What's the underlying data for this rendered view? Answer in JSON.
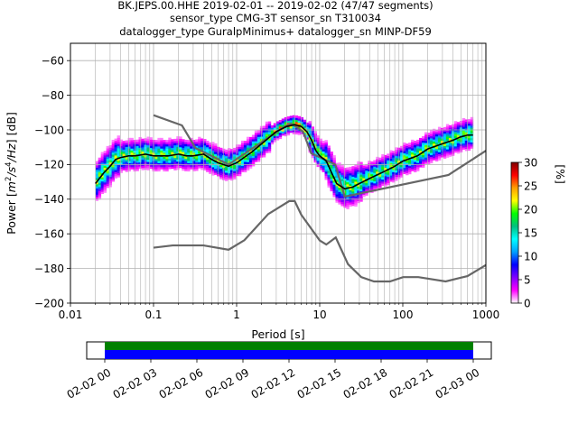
{
  "title": {
    "line1": "BK.JEPS.00.HHE   2019-02-01 -- 2019-02-02  (47/47 segments)",
    "line2": "sensor_type CMG-3T sensor_sn T310034",
    "line3": "datalogger_type GuralpMinimus+ datalogger_sn MINP-DF59"
  },
  "chart_data": {
    "type": "heatmap",
    "xlabel": "Period [s]",
    "ylabel_parts": [
      "Power [",
      "m",
      "2",
      "/s",
      "4",
      "/Hz",
      "] [dB]"
    ],
    "xscale": "log",
    "xlim": [
      0.01,
      1000
    ],
    "ylim": [
      -200,
      -50
    ],
    "xticks": [
      0.01,
      0.1,
      1,
      10,
      100,
      1000
    ],
    "xtick_labels": [
      "0.01",
      "0.1",
      "1",
      "10",
      "100",
      "1000"
    ],
    "yticks": [
      -60,
      -80,
      -100,
      -120,
      -140,
      -160,
      -180,
      -200
    ],
    "ytick_labels": [
      "−60",
      "−80",
      "−100",
      "−120",
      "−140",
      "−160",
      "−180",
      "−200"
    ],
    "grid": true,
    "colorbar": {
      "label": "[%]",
      "range": [
        0,
        30
      ],
      "ticks": [
        0,
        5,
        10,
        15,
        20,
        25,
        30
      ],
      "tick_labels": [
        "0",
        "5",
        "10",
        "15",
        "20",
        "25",
        "30"
      ],
      "colors": [
        "#ffffff",
        "#ff00ff",
        "#8000ff",
        "#0000ff",
        "#00a0ff",
        "#00ffff",
        "#00c080",
        "#00ff00",
        "#ffff00",
        "#ffa000",
        "#ff0000",
        "#800000"
      ]
    },
    "mode_curve": [
      [
        0.02,
        -131
      ],
      [
        0.025,
        -125
      ],
      [
        0.03,
        -121
      ],
      [
        0.035,
        -117
      ],
      [
        0.04,
        -116
      ],
      [
        0.05,
        -115
      ],
      [
        0.06,
        -115
      ],
      [
        0.08,
        -114
      ],
      [
        0.1,
        -115
      ],
      [
        0.15,
        -115
      ],
      [
        0.2,
        -114
      ],
      [
        0.25,
        -115
      ],
      [
        0.3,
        -115
      ],
      [
        0.4,
        -114
      ],
      [
        0.5,
        -117
      ],
      [
        0.6,
        -119
      ],
      [
        0.8,
        -121
      ],
      [
        1,
        -119
      ],
      [
        1.5,
        -113
      ],
      [
        2,
        -108
      ],
      [
        3,
        -101
      ],
      [
        4,
        -98
      ],
      [
        5,
        -97
      ],
      [
        6,
        -98
      ],
      [
        7,
        -101
      ],
      [
        8,
        -106
      ],
      [
        9,
        -112
      ],
      [
        10,
        -115
      ],
      [
        12,
        -118
      ],
      [
        14,
        -125
      ],
      [
        16,
        -131
      ],
      [
        20,
        -134
      ],
      [
        25,
        -133
      ],
      [
        30,
        -131
      ],
      [
        40,
        -128
      ],
      [
        60,
        -124
      ],
      [
        80,
        -121
      ],
      [
        100,
        -118
      ],
      [
        150,
        -115
      ],
      [
        200,
        -111
      ],
      [
        300,
        -108
      ],
      [
        400,
        -106
      ],
      [
        500,
        -104
      ],
      [
        600,
        -103
      ],
      [
        700,
        -103
      ]
    ],
    "nhnm": [
      [
        0.1,
        -91.5
      ],
      [
        0.22,
        -97.4
      ],
      [
        0.32,
        -110.5
      ],
      [
        0.8,
        -120
      ],
      [
        3.8,
        -98
      ],
      [
        4.6,
        -96.5
      ],
      [
        6.3,
        -101
      ],
      [
        7.9,
        -113.5
      ],
      [
        15.4,
        -120
      ],
      [
        20,
        -138.5
      ],
      [
        354.8,
        -126
      ],
      [
        1000,
        -112
      ]
    ],
    "nlnm": [
      [
        0.1,
        -168
      ],
      [
        0.17,
        -166.7
      ],
      [
        0.4,
        -166.7
      ],
      [
        0.8,
        -169.2
      ],
      [
        1.24,
        -163.7
      ],
      [
        2.4,
        -148.6
      ],
      [
        4.3,
        -141.1
      ],
      [
        5,
        -141.1
      ],
      [
        6,
        -149
      ],
      [
        10,
        -163.8
      ],
      [
        12,
        -166.2
      ],
      [
        15.6,
        -162.1
      ],
      [
        21.9,
        -177.5
      ],
      [
        31.6,
        -185
      ],
      [
        45,
        -187.5
      ],
      [
        70,
        -187.5
      ],
      [
        101,
        -185
      ],
      [
        154,
        -185
      ],
      [
        328,
        -187.5
      ],
      [
        600,
        -184.4
      ],
      [
        1000,
        -178
      ]
    ],
    "time_axis": {
      "tick_labels": [
        "02-02 00",
        "02-02 03",
        "02-02 06",
        "02-02 09",
        "02-02 12",
        "02-02 15",
        "02-02 18",
        "02-02 21",
        "02-03 00"
      ],
      "coverage_colors": [
        "#008000",
        "#0000ff"
      ]
    }
  }
}
